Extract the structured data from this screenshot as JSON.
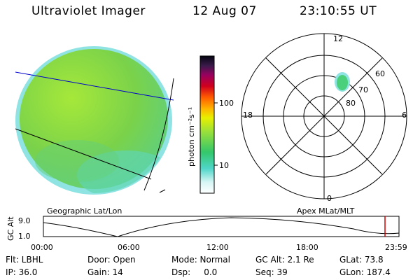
{
  "header": {
    "title": "Ultraviolet Imager",
    "date": "12 Aug 07",
    "time": "23:10:55 UT"
  },
  "colorbar": {
    "label": "photon cm⁻²s⁻¹",
    "ticks": [
      "100",
      "10"
    ]
  },
  "polar": {
    "mlt_labels": [
      "12",
      "18",
      "6",
      "0"
    ],
    "lat_labels": [
      "60",
      "70",
      "80"
    ]
  },
  "panels": {
    "left_caption": "Geographic Lat/Lon",
    "right_caption": "Apex MLat/MLT"
  },
  "altplot": {
    "ylabel": "GC Alt",
    "yticks": [
      "9.0",
      "1.0"
    ],
    "xticks": [
      "00:00",
      "06:00",
      "12:00",
      "18:00",
      "23:59"
    ],
    "marker_color": "#cc0000"
  },
  "footer": {
    "filter": "Flt: LBHL",
    "door": "Door: Open",
    "mode": "Mode: Normal",
    "gcalt": "GC Alt: 2.1 Re",
    "glat": "GLat: 73.8",
    "ip": "IP: 36.0",
    "gain": "Gain: 14",
    "dsp": "Dsp:     0.0",
    "seq": "Seq: 39",
    "glon": "GLon: 187.4"
  },
  "colors": {
    "disk_fill": "#8edb3a",
    "ring_color": "#8fe3e3",
    "spot_color": "#4ad07a"
  }
}
